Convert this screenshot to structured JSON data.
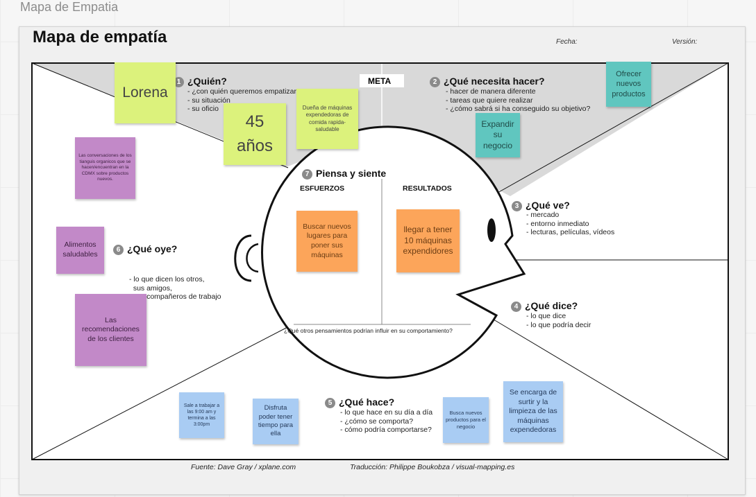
{
  "board_title": "Mapa de Empatia",
  "canvas": {
    "title": "Mapa de empatía",
    "fecha_label": "Fecha:",
    "version_label": "Versión:",
    "meta_label": "META",
    "footer_source": "Fuente: Dave Gray / xplane.com",
    "footer_translation": "Traducción: Philippe Boukobza / visual-mapping.es"
  },
  "sections": {
    "quien": {
      "num": "1",
      "title": "¿Quién?",
      "items": [
        "- ¿con quién queremos empatizar?",
        "- su situación",
        "- su oficio"
      ]
    },
    "necesita": {
      "num": "2",
      "title": "¿Qué necesita hacer?",
      "items": [
        "- hacer de manera diferente",
        "- tareas que quiere realizar",
        "- ¿cómo sabrá si ha conseguido su objetivo?"
      ]
    },
    "ve": {
      "num": "3",
      "title": "¿Qué ve?",
      "items": [
        "- mercado",
        "- entorno inmediato",
        "- lecturas, películas, vídeos"
      ]
    },
    "dice": {
      "num": "4",
      "title": "¿Qué dice?",
      "items": [
        "- lo que dice",
        "- lo que podría decir"
      ]
    },
    "hace": {
      "num": "5",
      "title": "¿Qué hace?",
      "items": [
        "- lo que hace en su día a día",
        "- ¿cómo se comporta?",
        "- cómo podría comportarse?"
      ]
    },
    "oye": {
      "num": "6",
      "title": "¿Qué oye?",
      "items": [
        "- lo que dicen los otros,",
        "  sus amigos,",
        "  sus compañeros de trabajo"
      ]
    },
    "piensa": {
      "num": "7",
      "title": "Piensa y siente",
      "esfuerzos": "ESFUERZOS",
      "resultados": "RESULTADOS",
      "question": "¿Qué otros pensamientos podrían influir en su comportamiento?"
    }
  },
  "notes": {
    "lorena": "Lorena",
    "edad": "45 años",
    "duena": "Dueña de máquinas expendedoras de comida rapida-saludable",
    "ofrecer": "Ofrecer nuevos productos",
    "expandir": "Expandir su negocio",
    "tianguis": "Las conversaciones de los tianguis organicos que se hacen/encuentran en la CDMX sobre productos nuevos.",
    "alimentos": "Alimentos saludables",
    "recomendaciones": "Las recomendaciones de los clientes",
    "buscar_lugares": "Buscar nuevos lugares para poner sus máquinas",
    "llegar": "llegar a tener 10 máquinas expendidores",
    "sale_trabajar": "Sale a trabajar a las 9:00 am y termina a las 3:00pm",
    "disfruta": "Disfruta poder tener tiempo para ella",
    "buscar_productos": "Busca nuevos productos para el negocio",
    "encarga": "Se encarga de surtir y la limpieza de las máquinas expendedoras"
  },
  "colors": {
    "yellow": "#dcf27c",
    "orange": "#fca55a",
    "purple": "#c289c8",
    "teal": "#60c6bf",
    "blue": "#a9ccf3",
    "top_zone": "#d9d9d9"
  }
}
